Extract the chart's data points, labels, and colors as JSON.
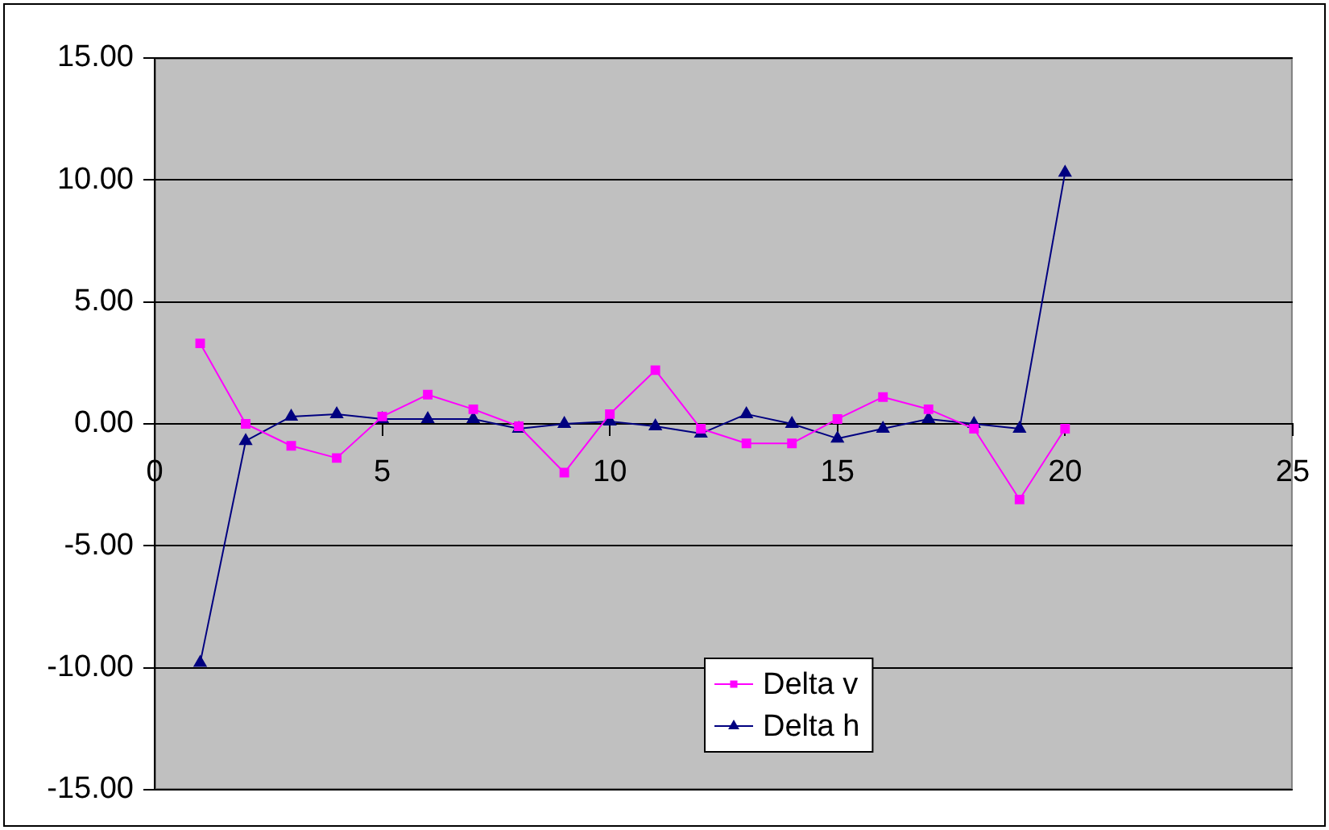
{
  "chart_data": {
    "type": "line",
    "x": [
      1,
      2,
      3,
      4,
      5,
      6,
      7,
      8,
      9,
      10,
      11,
      12,
      13,
      14,
      15,
      16,
      17,
      18,
      19,
      20
    ],
    "xlim": [
      0,
      25
    ],
    "xticks": [
      0,
      5,
      10,
      15,
      20,
      25
    ],
    "ylim": [
      -15,
      15
    ],
    "yticks": [
      {
        "value": -15,
        "label": "-15.00"
      },
      {
        "value": -10,
        "label": "-10.00"
      },
      {
        "value": -5,
        "label": "-5.00"
      },
      {
        "value": 0,
        "label": "0.00"
      },
      {
        "value": 5,
        "label": "5.00"
      },
      {
        "value": 10,
        "label": "10.00"
      },
      {
        "value": 15,
        "label": "15.00"
      }
    ],
    "grid": "y",
    "legend": "bottom",
    "series": [
      {
        "name": "Delta v",
        "color": "#ff00ff",
        "marker": "square",
        "values": [
          3.3,
          0.0,
          -0.9,
          -1.4,
          0.3,
          1.2,
          0.6,
          -0.1,
          -2.0,
          0.4,
          2.2,
          -0.2,
          -0.8,
          -0.8,
          0.2,
          1.1,
          0.6,
          -0.2,
          -3.1,
          -0.2
        ]
      },
      {
        "name": "Delta h",
        "color": "#000080",
        "marker": "triangle",
        "values": [
          -9.8,
          -0.7,
          0.3,
          0.4,
          0.2,
          0.2,
          0.2,
          -0.2,
          0.0,
          0.1,
          -0.1,
          -0.4,
          0.4,
          0.0,
          -0.6,
          -0.2,
          0.2,
          0.0,
          -0.2,
          10.3
        ]
      }
    ]
  }
}
